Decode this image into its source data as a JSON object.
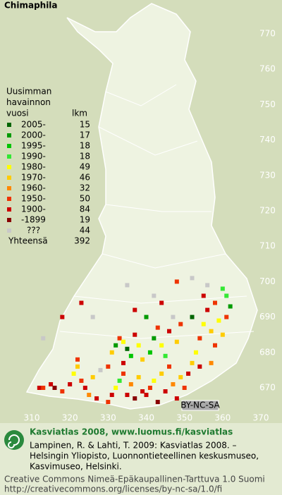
{
  "title": "Chimaphila",
  "legend": {
    "header": [
      "Uusimman",
      "havainnon",
      "vuosi"
    ],
    "count_header": "lkm",
    "rows": [
      {
        "label": "2005-",
        "count": 15,
        "color": "#006400"
      },
      {
        "label": "2000-",
        "count": 17,
        "color": "#009a00"
      },
      {
        "label": "1995-",
        "count": 18,
        "color": "#00c400"
      },
      {
        "label": "1990-",
        "count": 18,
        "color": "#33e833"
      },
      {
        "label": "1980-",
        "count": 49,
        "color": "#ffff00"
      },
      {
        "label": "1970-",
        "count": 46,
        "color": "#ffcc00"
      },
      {
        "label": "1960-",
        "count": 32,
        "color": "#ff8800"
      },
      {
        "label": "1950-",
        "count": 50,
        "color": "#ee3300"
      },
      {
        "label": "1900-",
        "count": 84,
        "color": "#cc0000"
      },
      {
        "label": "-1899",
        "count": 19,
        "color": "#880000"
      },
      {
        "label": "???",
        "count": 44,
        "color": "#c8c8c8"
      }
    ],
    "total_label": "Yhteensä",
    "total": 392
  },
  "map": {
    "xlim": [
      310,
      370
    ],
    "ylim": [
      670,
      770
    ],
    "xticks": [
      310,
      320,
      330,
      340,
      350,
      360,
      370
    ],
    "yticks": [
      770,
      760,
      750,
      740,
      730,
      720,
      710,
      700,
      690,
      680,
      670
    ],
    "observations": [
      {
        "x": 312,
        "y": 670,
        "period": "1900-"
      },
      {
        "x": 313,
        "y": 670,
        "period": "1950-"
      },
      {
        "x": 315,
        "y": 671,
        "period": "1900-"
      },
      {
        "x": 316,
        "y": 670,
        "period": "-1899"
      },
      {
        "x": 318,
        "y": 669,
        "period": "1950-"
      },
      {
        "x": 320,
        "y": 671,
        "period": "1900-"
      },
      {
        "x": 321,
        "y": 674,
        "period": "1980-"
      },
      {
        "x": 322,
        "y": 676,
        "period": "1970-"
      },
      {
        "x": 323,
        "y": 672,
        "period": "1950-"
      },
      {
        "x": 324,
        "y": 670,
        "period": "1900-"
      },
      {
        "x": 325,
        "y": 668,
        "period": "1960-"
      },
      {
        "x": 326,
        "y": 673,
        "period": "1970-"
      },
      {
        "x": 327,
        "y": 667,
        "period": "1900-"
      },
      {
        "x": 328,
        "y": 675,
        "period": "???"
      },
      {
        "x": 322,
        "y": 678,
        "period": "1950-"
      },
      {
        "x": 330,
        "y": 666,
        "period": "1950-"
      },
      {
        "x": 331,
        "y": 668,
        "period": "1900-"
      },
      {
        "x": 332,
        "y": 670,
        "period": "1980-"
      },
      {
        "x": 333,
        "y": 672,
        "period": "1990-"
      },
      {
        "x": 334,
        "y": 674,
        "period": "1950-"
      },
      {
        "x": 335,
        "y": 668,
        "period": "1900-"
      },
      {
        "x": 336,
        "y": 671,
        "period": "1960-"
      },
      {
        "x": 337,
        "y": 667,
        "period": "-1899"
      },
      {
        "x": 338,
        "y": 673,
        "period": "1970-"
      },
      {
        "x": 339,
        "y": 669,
        "period": "1900-"
      },
      {
        "x": 331,
        "y": 680,
        "period": "1970-"
      },
      {
        "x": 332,
        "y": 682,
        "period": "2000-"
      },
      {
        "x": 333,
        "y": 684,
        "period": "1950-"
      },
      {
        "x": 334,
        "y": 683,
        "period": "1980-"
      },
      {
        "x": 335,
        "y": 681,
        "period": "2005-"
      },
      {
        "x": 336,
        "y": 679,
        "period": "1995-"
      },
      {
        "x": 337,
        "y": 685,
        "period": "1900-"
      },
      {
        "x": 338,
        "y": 682,
        "period": "1980-"
      },
      {
        "x": 339,
        "y": 678,
        "period": "1970-"
      },
      {
        "x": 330,
        "y": 676,
        "period": "1950-"
      },
      {
        "x": 334,
        "y": 677,
        "period": "1900-"
      },
      {
        "x": 340,
        "y": 668,
        "period": "1900-"
      },
      {
        "x": 341,
        "y": 670,
        "period": "1950-"
      },
      {
        "x": 342,
        "y": 672,
        "period": "1980-"
      },
      {
        "x": 343,
        "y": 666,
        "period": "-1899"
      },
      {
        "x": 344,
        "y": 674,
        "period": "1970-"
      },
      {
        "x": 345,
        "y": 669,
        "period": "1900-"
      },
      {
        "x": 346,
        "y": 676,
        "period": "1950-"
      },
      {
        "x": 347,
        "y": 671,
        "period": "1960-"
      },
      {
        "x": 348,
        "y": 667,
        "period": "1900-"
      },
      {
        "x": 349,
        "y": 673,
        "period": "1970-"
      },
      {
        "x": 341,
        "y": 680,
        "period": "1995-"
      },
      {
        "x": 342,
        "y": 684,
        "period": "2000-"
      },
      {
        "x": 343,
        "y": 687,
        "period": "1950-"
      },
      {
        "x": 344,
        "y": 682,
        "period": "1980-"
      },
      {
        "x": 345,
        "y": 679,
        "period": "1990-"
      },
      {
        "x": 346,
        "y": 686,
        "period": "1900-"
      },
      {
        "x": 347,
        "y": 690,
        "period": "???"
      },
      {
        "x": 348,
        "y": 683,
        "period": "1970-"
      },
      {
        "x": 349,
        "y": 688,
        "period": "1950-"
      },
      {
        "x": 344,
        "y": 694,
        "period": "1900-"
      },
      {
        "x": 342,
        "y": 696,
        "period": "???"
      },
      {
        "x": 350,
        "y": 670,
        "period": "1950-"
      },
      {
        "x": 351,
        "y": 674,
        "period": "1900-"
      },
      {
        "x": 352,
        "y": 677,
        "period": "1970-"
      },
      {
        "x": 353,
        "y": 680,
        "period": "1980-"
      },
      {
        "x": 354,
        "y": 684,
        "period": "1950-"
      },
      {
        "x": 355,
        "y": 688,
        "period": "1980-"
      },
      {
        "x": 356,
        "y": 692,
        "period": "1900-"
      },
      {
        "x": 357,
        "y": 686,
        "period": "1970-"
      },
      {
        "x": 358,
        "y": 682,
        "period": "1950-"
      },
      {
        "x": 359,
        "y": 689,
        "period": "1980-"
      },
      {
        "x": 360,
        "y": 685,
        "period": "1970-"
      },
      {
        "x": 361,
        "y": 690,
        "period": "1950-"
      },
      {
        "x": 362,
        "y": 693,
        "period": "2000-"
      },
      {
        "x": 360,
        "y": 698,
        "period": "1990-"
      },
      {
        "x": 356,
        "y": 699,
        "period": "???"
      },
      {
        "x": 352,
        "y": 690,
        "period": "2005-"
      },
      {
        "x": 354,
        "y": 676,
        "period": "1900-"
      },
      {
        "x": 357,
        "y": 677,
        "period": "1960-"
      },
      {
        "x": 358,
        "y": 694,
        "period": "1950-"
      },
      {
        "x": 355,
        "y": 696,
        "period": "1900-"
      },
      {
        "x": 323,
        "y": 694,
        "period": "1900-"
      },
      {
        "x": 318,
        "y": 690,
        "period": "1900-"
      },
      {
        "x": 335,
        "y": 699,
        "period": "???"
      },
      {
        "x": 348,
        "y": 700,
        "period": "1950-"
      },
      {
        "x": 352,
        "y": 701,
        "period": "???"
      },
      {
        "x": 337,
        "y": 692,
        "period": "1900-"
      },
      {
        "x": 313,
        "y": 684,
        "period": "???"
      },
      {
        "x": 326,
        "y": 690,
        "period": "???"
      },
      {
        "x": 340,
        "y": 690,
        "period": "2000-"
      },
      {
        "x": 361,
        "y": 696,
        "period": "1990-"
      }
    ]
  },
  "badge": "BY-NC-SA",
  "footer": {
    "heading": "Kasviatlas 2008, www.luomus.fi/kasviatlas",
    "citation": [
      "Lampinen, R. & Lahti, T. 2009: Kasviatlas 2008. –",
      "Helsingin Yliopisto, Luonnontieteellinen keskusmuseo,",
      "Kasvimuseo, Helsinki."
    ],
    "license": [
      "Creative Commons Nimeä-Epäkaupallinen-Tarttuva 1.0 Suomi",
      "http://creativecommons.org/licenses/by-nc-sa/1.0/fi"
    ]
  }
}
